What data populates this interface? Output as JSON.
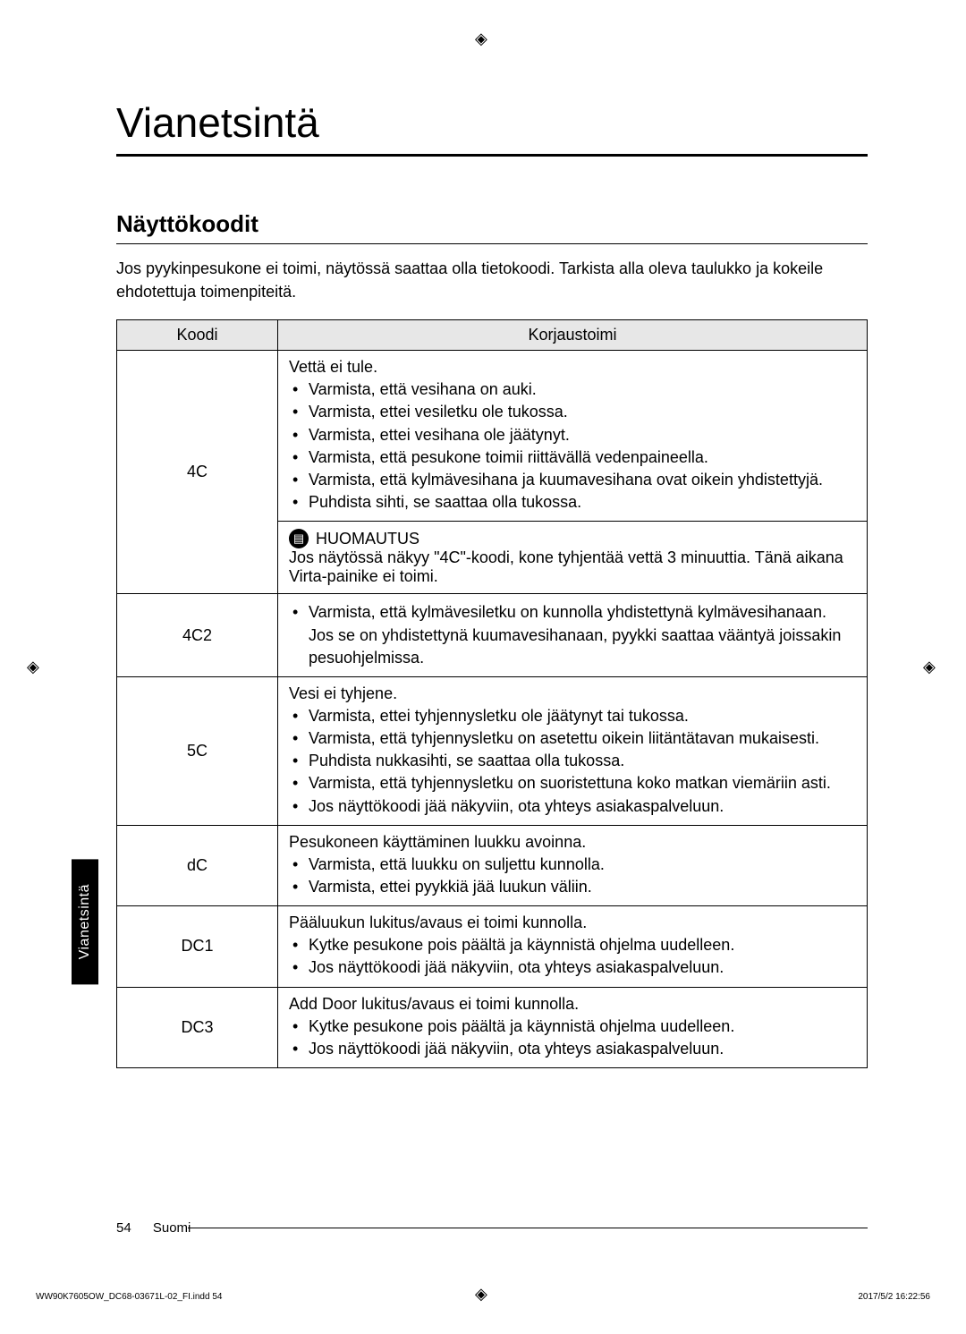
{
  "print": {
    "imprint_left": "WW90K7605OW_DC68-03671L-02_FI.indd   54",
    "imprint_right": "2017/5/2   16:22:56"
  },
  "page": {
    "title": "Vianetsintä",
    "section_heading": "Näyttökoodit",
    "intro": "Jos pyykinpesukone ei toimi, näytössä saattaa olla tietokoodi. Tarkista alla oleva taulukko ja kokeile ehdotettuja toimenpiteitä.",
    "side_tab": "Vianetsintä",
    "footer_page": "54",
    "footer_lang": "Suomi"
  },
  "table": {
    "head_code": "Koodi",
    "head_action": "Korjaustoimi",
    "rows": [
      {
        "code": "4C",
        "lead": "Vettä ei tule.",
        "items": [
          "Varmista, että vesihana on auki.",
          "Varmista, ettei vesiletku ole tukossa.",
          "Varmista, ettei vesihana ole jäätynyt.",
          "Varmista, että pesukone toimii riittävällä vedenpaineella.",
          "Varmista, että kylmävesihana ja kuumavesihana ovat oikein yhdistettyjä.",
          "Puhdista sihti, se saattaa olla tukossa."
        ],
        "note_label": "HUOMAUTUS",
        "note_body": "Jos näytössä näkyy \"4C\"-koodi, kone tyhjentää vettä 3 minuuttia. Tänä aikana Virta-painike ei toimi."
      },
      {
        "code": "4C2",
        "lead": "",
        "items": [
          "Varmista, että kylmävesiletku on kunnolla yhdistettynä kylmävesihanaan.\nJos se on yhdistettynä kuumavesihanaan, pyykki saattaa vääntyä joissakin pesuohjelmissa."
        ]
      },
      {
        "code": "5C",
        "lead": "Vesi ei tyhjene.",
        "items": [
          "Varmista, ettei tyhjennysletku ole jäätynyt tai tukossa.",
          "Varmista, että tyhjennysletku on asetettu oikein liitäntätavan mukaisesti.",
          "Puhdista nukkasihti, se saattaa olla tukossa.",
          "Varmista, että tyhjennysletku on suoristettuna koko matkan viemäriin asti.",
          "Jos näyttökoodi jää näkyviin, ota yhteys asiakaspalveluun."
        ]
      },
      {
        "code": "dC",
        "lead": "Pesukoneen käyttäminen luukku avoinna.",
        "items": [
          "Varmista, että luukku on suljettu kunnolla.",
          "Varmista, ettei pyykkiä jää luukun väliin."
        ]
      },
      {
        "code": "DC1",
        "lead": "Pääluukun lukitus/avaus ei toimi kunnolla.",
        "items": [
          "Kytke pesukone pois päältä ja käynnistä ohjelma uudelleen.",
          "Jos näyttökoodi jää näkyviin, ota yhteys asiakaspalveluun."
        ]
      },
      {
        "code": "DC3",
        "lead": "Add Door lukitus/avaus ei toimi kunnolla.",
        "items": [
          "Kytke pesukone pois päältä ja käynnistä ohjelma uudelleen.",
          "Jos näyttökoodi jää näkyviin, ota yhteys asiakaspalveluun."
        ]
      }
    ]
  }
}
